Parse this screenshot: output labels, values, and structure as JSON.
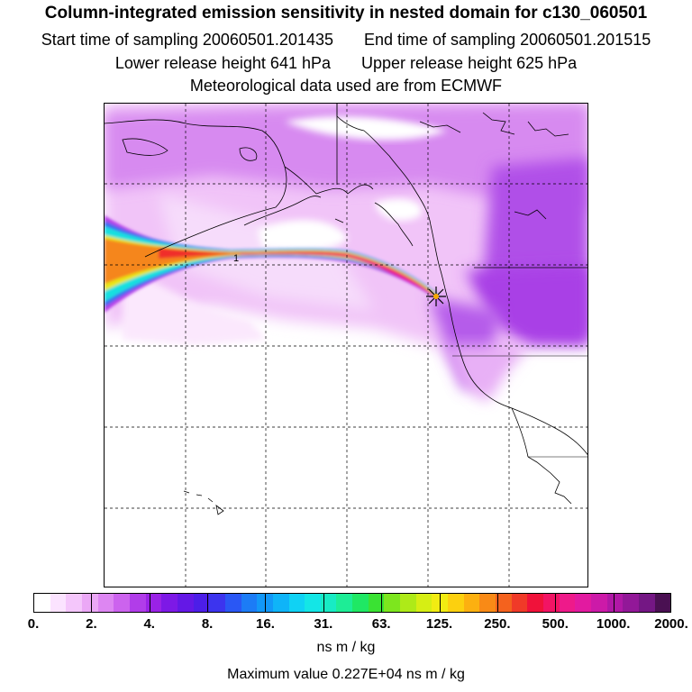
{
  "header": {
    "title": "Column-integrated emission sensitivity in nested domain for c130_060501",
    "start_label": "Start time of sampling 20060501.201435",
    "end_label": "End time of sampling 20060501.201515",
    "lower_label": "Lower release height  641 hPa",
    "upper_label": "Upper release height  625 hPa",
    "met_label": "Meteorological data used are from ECMWF"
  },
  "map": {
    "contour_label": "1",
    "release_marker": "star-icon"
  },
  "colorbar": {
    "colors": [
      "#ffffff",
      "#fbe3ff",
      "#f4c6fb",
      "#eba8f6",
      "#dd86f2",
      "#cc63ee",
      "#b13de9",
      "#9a22e6",
      "#7d19e6",
      "#6418e6",
      "#4c1ee8",
      "#3c34ee",
      "#2a57f4",
      "#1c7cf6",
      "#1298f8",
      "#0fb4f8",
      "#10d2f4",
      "#14e6e6",
      "#18ebc4",
      "#1ded96",
      "#1fe864",
      "#3ae233",
      "#7de61e",
      "#aeea18",
      "#d6ee14",
      "#f2ec12",
      "#fcd00f",
      "#fcb010",
      "#f98a16",
      "#f4621e",
      "#f03a28",
      "#f0123a",
      "#f21464",
      "#ee1a8a",
      "#e21aa0",
      "#cc1aa8",
      "#b018a6",
      "#921898",
      "#741784",
      "#4a1052"
    ],
    "tick_labels": [
      "0.",
      "2.",
      "4.",
      "8.",
      "16.",
      "31.",
      "63.",
      "125.",
      "250.",
      "500.",
      "1000.",
      "2000."
    ],
    "unit": "ns m / kg",
    "max_value": "Maximum value  0.227E+04 ns m / kg"
  }
}
